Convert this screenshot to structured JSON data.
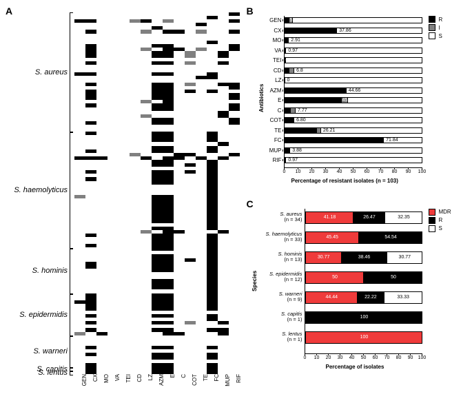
{
  "panelA": {
    "label": "A",
    "antibiotics": [
      "GEN",
      "CX",
      "MO",
      "VA",
      "TEI",
      "CD",
      "LZ",
      "AZM",
      "E",
      "C",
      "COT",
      "TE",
      "FC",
      "MUP",
      "RIF"
    ],
    "species": [
      {
        "name": "S. aureus",
        "start": 0,
        "count": 34
      },
      {
        "name": "S. haemolyticus",
        "start": 34,
        "count": 33
      },
      {
        "name": "S. hominis",
        "start": 67,
        "count": 13
      },
      {
        "name": "S. epidermidis",
        "start": 80,
        "count": 12
      },
      {
        "name": "S. warneri",
        "start": 92,
        "count": 9
      },
      {
        "name": "S. capitis",
        "start": 101,
        "count": 1
      },
      {
        "name": "S. lentus",
        "start": 102,
        "count": 1
      }
    ],
    "rows": [
      "SSSSSSSSSSSSSSR",
      "SSSSSSSSSSSSRSS",
      "RRSSSIRSISSSSSRSS",
      "SSSSSSSSSSSRSS",
      "SSSSSSSRSSSSSSSS",
      "SRSSSSISRRSISSRSS",
      "SSSSSSSSSSSSSSS",
      "SSSSSSSSSSSSSSS",
      "SSSSSSSSSSSSRSS",
      "SRSSSSSRRSSSSSRSS",
      "SRSSSSISRRSISSRSS",
      "SRSSSSSRRSISSRSS",
      "SRSSSSSRRSISSRSS",
      "SSSSSSSSSSSSSSS",
      "SRSSSSSRRSISSRSS",
      "SSSSSSSSSSSSSSS",
      "SSSSSSSSSSSSSSS",
      "RRSSSSSRRSSSRSS",
      "SSSSSSSSSSSRRSS",
      "SSSSSSSSSSSSSSS",
      "SRSSSSSRRSISSRRS",
      "SSSSSSSRRSSSSSRSS",
      "SRSSSSSRRSRSRSS",
      "SRSSSSSRRSSSSSRSS",
      "SRSSSSSRRSSSSSRSS",
      "SSSSSSISRSSSSSSS",
      "SRSSSSSRRSSSSSRSS",
      "SSSSSSSRRSSSSSRSS",
      "SSSSSSSSSSSSSRSS",
      "SSSSSSISSSSSSRSS",
      "SSSSSSSRRSSSSSRSS",
      "SRSSSSSRRSSSSSRSS",
      "SSSSSSSSSSSSSSS",
      "SSSSSSSSSSSSSSS",
      "SRSSSSSRRSSSRSS",
      "SSSSSSSRRSSSRSS",
      "SSSSSSSRRSSSRSS",
      "SSSSSSSSSSSSSRSS",
      "SSSSSSSRRSSSRSS",
      "SRSSSSSRRSSSRSS",
      "SSSSSISSSRRSSSRSS",
      "RRRSSSRSRRSRSRSS",
      "SSSSSSSRRSSSRSS",
      "SSSSSSSRRSRSRSS",
      "SSSSSSSSSSSSRSS",
      "SRSSSSSRRSRSRSS",
      "SSSSSSSRRSSSRSS",
      "SRSSSSSRRSSSRSS",
      "SSSSSSSRRSSSRSS",
      "SSSSSSSSSSSSRSS",
      "SSSSSSSSSSSSRSS",
      "SSSSSSSSSSSSRSS",
      "ISSSSSSRRSSSRSS",
      "SSSSSSSRRSSSRSS",
      "SSSSSSSRRSSSRSS",
      "SSSSSSSRRSSSRSS",
      "SSSSSSSRRSSSRSS",
      "SSSSSSSRRSSSRSS",
      "SSSSSSSRRSSSRSS",
      "SSSSSSSRRSSSRSS",
      "SSSSSSSSSSSSRSS",
      "SSSSSSSRRSSSRSS",
      "SSSSSSISRRSSSRSS",
      "SRSSSSSRRSSSRSS",
      "SSSSSSSRRSSSRSS",
      "SSSSSSSRRSSSRSS",
      "SRSSSSSRRSSSRSS",
      "SSSSSSSRRSSSRSS",
      "SSSSSSSSSSSSRSS",
      "SSSSSSSRRSSSRSS",
      "SSSSSSSRRSRSRSS",
      "SRSSSSSRRSSSRSS",
      "SRSSSSSRRSSSRSS",
      "SSSSSSSRRSSSRSS",
      "SSSSSSSSSSSSRSS",
      "SSSSSSSSSSSSRSS",
      "SSSSSSSRRSSSRSS",
      "SSSSSSSRRSSSRSS",
      "SSSSSSSRRSSSRSS",
      "SSSSSSSSSSSSRSS",
      "SRSSSSSRRSSSRSS",
      "SRSSSSSRRSSSRSS",
      "RRSSSSSRRSSSRSS",
      "SRSSSSSRRSSSRSS",
      "SRSSSSSRRSSSRSS",
      "SSSSSSSSSSSSSSS",
      "SRSSSSSRRSSSRSS",
      "SSSSSSSSSSSSRSS",
      "SRSSSSSRRSISSRSS",
      "SSSSSSSSSSSSSSS",
      "SRSSSSSRRSSSRRS",
      "ISRSSSSSRRSSSRSS",
      "SSSSSSSSSSSSSSS",
      "SSSSSSSSSSSSSSS",
      "SSSSSSSSSSSSSSS",
      "SRSSSSSRRSSSRSS",
      "SSSSSSSSSSSSSSS",
      "SRSSSSSRRSSSRSS",
      "SSSSSSSRRSSSRSS",
      "SSSSSSSSSSSSSSS",
      "SRSSSSSRRSSSRSS",
      "SRSSSSSRRSSSRSS",
      "SRSSSSSRRSSSRSS"
    ]
  },
  "panelB": {
    "label": "B",
    "ylabel": "Antibiotics",
    "xlabel": "Percentage of resistant isolates (n = 103)",
    "xticks": [
      0,
      10,
      20,
      30,
      40,
      50,
      60,
      70,
      80,
      90,
      100
    ],
    "xlim": [
      0,
      100
    ],
    "legend": [
      {
        "label": "R",
        "color": "#000000"
      },
      {
        "label": "I",
        "color": "#808080"
      },
      {
        "label": "S",
        "color": "#ffffff"
      }
    ],
    "bars": [
      {
        "label": "GEN",
        "R": 3.0,
        "I": 2.83,
        "value": "5.83",
        "valueColor": "#fff",
        "valuePos": "on-I"
      },
      {
        "label": "CX",
        "R": 37.86,
        "I": 0,
        "value": "37.86",
        "valueColor": "#000",
        "valuePos": "right"
      },
      {
        "label": "MO",
        "R": 2.91,
        "I": 0,
        "value": "2.91",
        "valueColor": "#000",
        "valuePos": "right"
      },
      {
        "label": "VA",
        "R": 0.97,
        "I": 0,
        "value": "0.97",
        "valueColor": "#000",
        "valuePos": "right"
      },
      {
        "label": "TEI",
        "R": 0,
        "I": 0.97,
        "value": "0.97",
        "valueColor": "#fff",
        "valuePos": "on-I"
      },
      {
        "label": "CD",
        "R": 3.0,
        "I": 3.8,
        "value": "6.8",
        "valueColor": "#000",
        "valuePos": "right"
      },
      {
        "label": "LZ",
        "R": 0,
        "I": 0,
        "value": "0",
        "valueColor": "#000",
        "valuePos": "right"
      },
      {
        "label": "AZM",
        "R": 44.66,
        "I": 0,
        "value": "44.66",
        "valueColor": "#000",
        "valuePos": "right"
      },
      {
        "label": "E",
        "R": 41.0,
        "I": 4.63,
        "value": "45.63",
        "valueColor": "#fff",
        "valuePos": "on-I"
      },
      {
        "label": "C",
        "R": 4.0,
        "I": 3.77,
        "value": "7.77",
        "valueColor": "#000",
        "valuePos": "right"
      },
      {
        "label": "COT",
        "R": 6.8,
        "I": 0,
        "value": "6.80",
        "valueColor": "#000",
        "valuePos": "right"
      },
      {
        "label": "TE",
        "R": 23.0,
        "I": 3.21,
        "value": "26.21",
        "valueColor": "#000",
        "valuePos": "right"
      },
      {
        "label": "FC",
        "R": 71.84,
        "I": 0,
        "value": "71.84",
        "valueColor": "#000",
        "valuePos": "right"
      },
      {
        "label": "MUP",
        "R": 3.88,
        "I": 0,
        "value": "3.88",
        "valueColor": "#000",
        "valuePos": "right"
      },
      {
        "label": "RIF",
        "R": 0.97,
        "I": 0,
        "value": "0.97",
        "valueColor": "#000",
        "valuePos": "right"
      }
    ]
  },
  "panelC": {
    "label": "C",
    "ylabel": "Species",
    "xlabel": "Percentage of isolates",
    "xticks": [
      0,
      10,
      20,
      30,
      40,
      50,
      60,
      70,
      80,
      90,
      100
    ],
    "xlim": [
      0,
      100
    ],
    "legend": [
      {
        "label": "MDR",
        "color": "#ef3b3b"
      },
      {
        "label": "R",
        "color": "#000000"
      },
      {
        "label": "S",
        "color": "#ffffff"
      }
    ],
    "bars": [
      {
        "label": "S. aureus",
        "n": "(n = 34)",
        "MDR": 41.18,
        "R": 26.47,
        "S": 32.35
      },
      {
        "label": "S. haemolyticus",
        "n": "(n = 33)",
        "MDR": 45.45,
        "R": 54.54,
        "S": 0
      },
      {
        "label": "S. hominis",
        "n": "(n = 13)",
        "MDR": 30.77,
        "R": 38.46,
        "S": 30.77
      },
      {
        "label": "S. epidermidis",
        "n": "(n = 12)",
        "MDR": 50.0,
        "R": 50.0,
        "S": 0
      },
      {
        "label": "S. warneri",
        "n": "(n = 9)",
        "MDR": 44.44,
        "R": 22.22,
        "S": 33.33
      },
      {
        "label": "S. capitis",
        "n": "(n = 1)",
        "MDR": 0,
        "R": 100,
        "S": 0
      },
      {
        "label": "S. lentus",
        "n": "(n = 1)",
        "MDR": 100,
        "R": 0,
        "S": 0
      }
    ]
  }
}
